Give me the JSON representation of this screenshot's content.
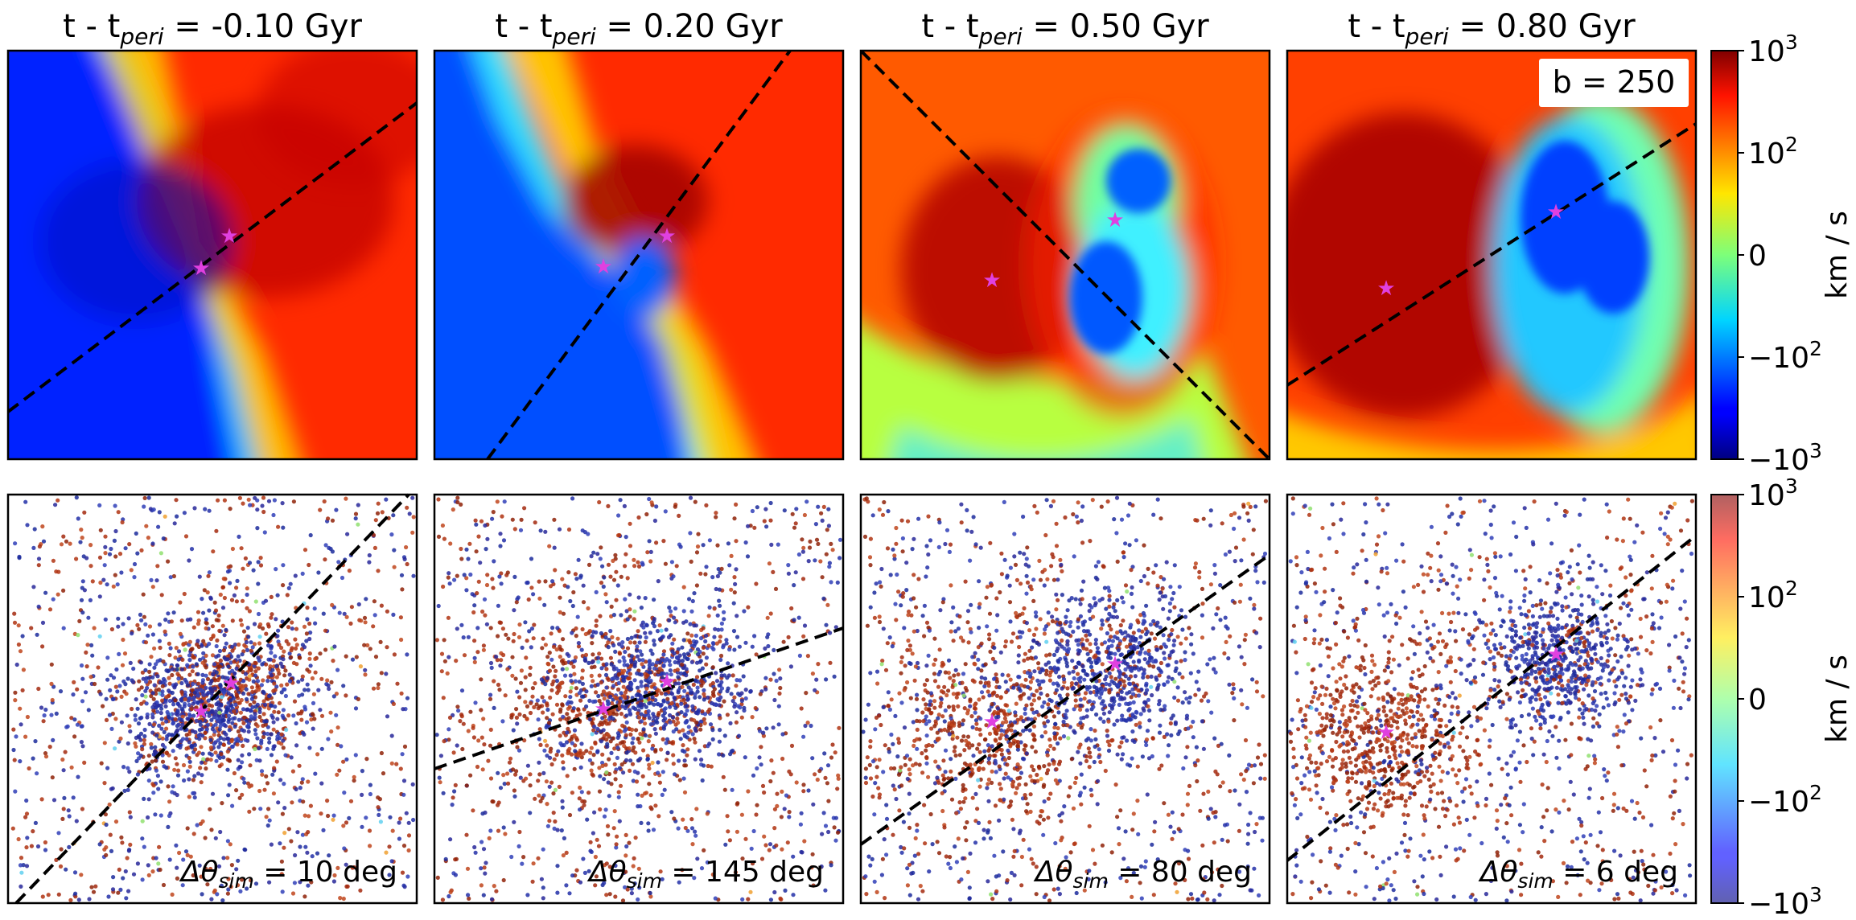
{
  "figure": {
    "colorbar_top": {
      "ticks": [
        {
          "base": "10",
          "sup": "3"
        },
        {
          "base": "10",
          "sup": "2"
        },
        {
          "base": "0",
          "sup": ""
        },
        {
          "base": "−10",
          "sup": "2"
        },
        {
          "base": "−10",
          "sup": "3"
        }
      ],
      "label": "km / s"
    },
    "colorbar_bottom": {
      "ticks": [
        {
          "base": "10",
          "sup": "3"
        },
        {
          "base": "10",
          "sup": "2"
        },
        {
          "base": "0",
          "sup": ""
        },
        {
          "base": "−10",
          "sup": "2"
        },
        {
          "base": "−10",
          "sup": "3"
        }
      ],
      "label": "km / s"
    },
    "b_label": "b = 250",
    "colors": {
      "star": "#e040e0",
      "line": "#000000",
      "colormap": "jet"
    }
  },
  "chart_data": {
    "type": "heatmap",
    "colorbar_range": [
      -1000,
      1000
    ],
    "colorbar_scale": "symlog",
    "columns": [
      {
        "title_pre": "t - t",
        "title_sub": "peri",
        "title_post": " = -0.10 Gyr",
        "delta_label": {
          "pre": "Δθ",
          "sub": "sim",
          "post": " = 10 deg"
        }
      },
      {
        "title_pre": "t - t",
        "title_sub": "peri",
        "title_post": " = 0.20 Gyr",
        "delta_label": {
          "pre": "Δθ",
          "sub": "sim",
          "post": " = 145 deg"
        }
      },
      {
        "title_pre": "t - t",
        "title_sub": "peri",
        "title_post": " = 0.50 Gyr",
        "delta_label": {
          "pre": "Δθ",
          "sub": "sim",
          "post": " = 80 deg"
        }
      },
      {
        "title_pre": "t - t",
        "title_sub": "peri",
        "title_post": " = 0.80 Gyr",
        "delta_label": {
          "pre": "Δθ",
          "sub": "sim",
          "post": " = 6 deg"
        }
      }
    ]
  }
}
